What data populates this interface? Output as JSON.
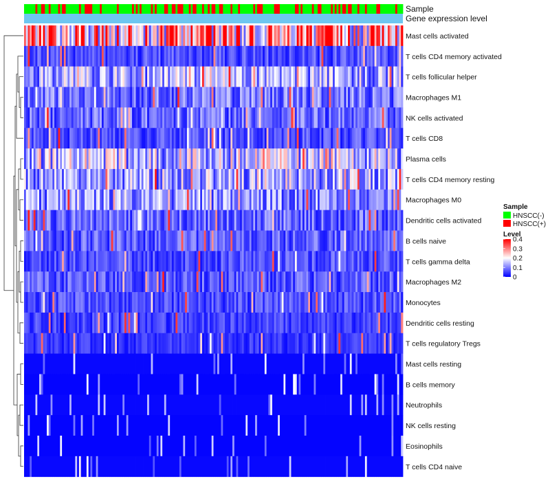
{
  "chart_data": {
    "type": "heatmap",
    "title": "",
    "n_samples": 200,
    "annotation_rows": [
      "Sample",
      "Gene expression level"
    ],
    "rows": [
      {
        "label": "Mast cells activated",
        "mean": 0.28
      },
      {
        "label": "T cells CD4 memory activated",
        "mean": 0.06
      },
      {
        "label": "T cells follicular helper",
        "mean": 0.13
      },
      {
        "label": "Macrophages M1",
        "mean": 0.09
      },
      {
        "label": "NK cells activated",
        "mean": 0.08
      },
      {
        "label": "T cells CD8",
        "mean": 0.06
      },
      {
        "label": "Plasma cells",
        "mean": 0.16
      },
      {
        "label": "T cells CD4 memory resting",
        "mean": 0.13
      },
      {
        "label": "Macrophages M0",
        "mean": 0.11
      },
      {
        "label": "Dendritic cells activated",
        "mean": 0.08
      },
      {
        "label": "B cells naive",
        "mean": 0.07
      },
      {
        "label": "T cells gamma delta",
        "mean": 0.06
      },
      {
        "label": "Macrophages M2",
        "mean": 0.07
      },
      {
        "label": "Monocytes",
        "mean": 0.06
      },
      {
        "label": "Dendritic cells resting",
        "mean": 0.05
      },
      {
        "label": "T cells regulatory  Tregs",
        "mean": 0.04
      },
      {
        "label": "Mast cells resting",
        "mean": 0.02
      },
      {
        "label": "B cells memory",
        "mean": 0.01
      },
      {
        "label": "Neutrophils",
        "mean": 0.02
      },
      {
        "label": "NK cells resting",
        "mean": 0.01
      },
      {
        "label": "Eosinophils",
        "mean": 0.01
      },
      {
        "label": "T cells CD4 naive",
        "mean": 0.02
      }
    ],
    "legend": {
      "sample_title": "Sample",
      "groups": [
        {
          "label": "HNSCC(-)",
          "color": "#00ff00"
        },
        {
          "label": "HNSCC(+)",
          "color": "#ff0000"
        }
      ],
      "level_title": "Level",
      "level_ticks": [
        "0.4",
        "0.3",
        "0.2",
        "0.1",
        "0"
      ],
      "level_range": [
        0,
        0.4
      ],
      "colors": {
        "low": "#0000ff",
        "mid": "#ffffff",
        "high": "#ff0000"
      }
    },
    "expression_bar_color": "#6ec6f0"
  }
}
